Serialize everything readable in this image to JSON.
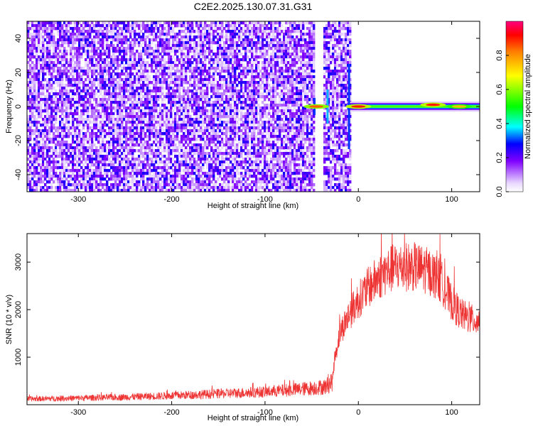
{
  "figure": {
    "title": "C2E2.2025.130.07.31.G31"
  },
  "chart_data": [
    {
      "type": "heatmap",
      "xlabel": "Height of straight line (km)",
      "ylabel": "Frequency (Hz)",
      "xlim": [
        -355,
        130
      ],
      "ylim": [
        -50,
        50
      ],
      "x_ticks": [
        -300,
        -200,
        -100,
        0,
        100
      ],
      "y_ticks": [
        -40,
        -20,
        0,
        20,
        40
      ],
      "noise_region": {
        "x_range": [
          -355,
          -10
        ],
        "gap_x": [
          -48,
          -38
        ],
        "amplitude_range": [
          0.0,
          0.25
        ]
      },
      "signal_band": {
        "x_range": [
          -12,
          130
        ],
        "frequency_hz": 0,
        "amplitude": 1.0
      },
      "hotspots": [
        {
          "x": 0,
          "y": 0,
          "amplitude": 0.9
        },
        {
          "x": 80,
          "y": 1,
          "amplitude": 0.9
        },
        {
          "x": 108,
          "y": 0,
          "amplitude": 0.75
        },
        {
          "x": -45,
          "y": 0,
          "amplitude": 0.85
        }
      ],
      "colorbar": {
        "label": "Normalized spectral amplitude",
        "range": [
          0,
          1
        ],
        "ticks": [
          0.0,
          0.2,
          0.4,
          0.6,
          0.8
        ]
      }
    },
    {
      "type": "line",
      "xlabel": "Height of straight line (km)",
      "ylabel": "SNR (10 * v/v)",
      "xlim": [
        -355,
        130
      ],
      "ylim": [
        0,
        3600
      ],
      "x_ticks": [
        -300,
        -200,
        -100,
        0,
        100
      ],
      "y_ticks": [
        1000,
        2000,
        3000
      ],
      "color": "#ee3333",
      "series": [
        {
          "x": [
            -355,
            -300,
            -250,
            -200,
            -150,
            -100,
            -60,
            -35,
            -28,
            -25,
            -20,
            -15,
            -10,
            0,
            10,
            20,
            30,
            40,
            50,
            60,
            70,
            80,
            90,
            100,
            110,
            120,
            130
          ],
          "values": [
            120,
            140,
            160,
            190,
            230,
            270,
            330,
            380,
            500,
            1000,
            1500,
            1700,
            1900,
            2200,
            2450,
            2650,
            2800,
            2900,
            2900,
            2900,
            2850,
            2750,
            2550,
            2150,
            1900,
            1800,
            1750
          ]
        }
      ]
    }
  ]
}
